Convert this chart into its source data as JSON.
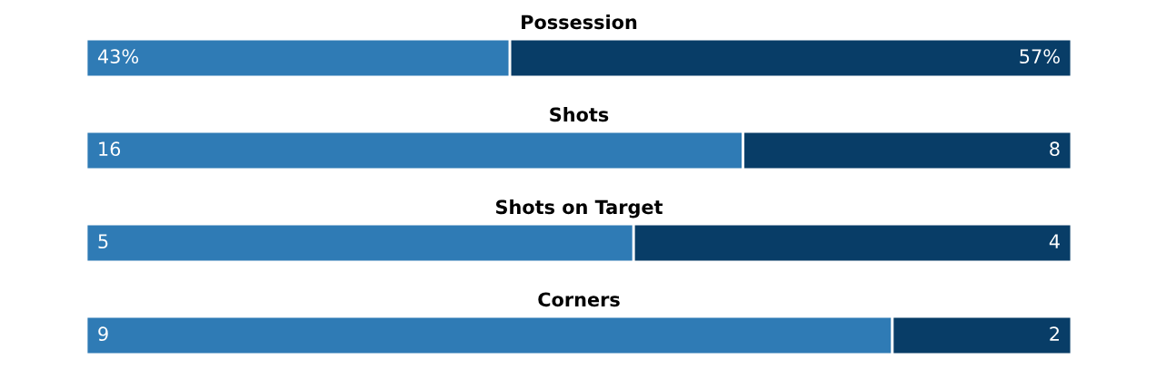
{
  "chart_data": [
    {
      "type": "bar",
      "orientation": "horizontal",
      "stacked": true,
      "title": "Possession",
      "categories": [
        null
      ],
      "tick_labels": false,
      "series": [
        {
          "color": "#2f7bb5",
          "values": [
            43
          ],
          "value_labels": [
            "43%"
          ]
        },
        {
          "color": "#083d67",
          "values": [
            57
          ],
          "value_labels": [
            "57%"
          ]
        }
      ]
    },
    {
      "type": "bar",
      "orientation": "horizontal",
      "stacked": true,
      "title": "Shots",
      "categories": [
        null
      ],
      "tick_labels": false,
      "data_labels": true,
      "series": [
        {
          "color": "#2f7bb5",
          "values": [
            16
          ]
        },
        {
          "color": "#083d67",
          "values": [
            8
          ]
        }
      ]
    },
    {
      "type": "bar",
      "orientation": "horizontal",
      "stacked": true,
      "title": "Shots on Target",
      "categories": [
        null
      ],
      "tick_labels": false,
      "data_labels": true,
      "series": [
        {
          "color": "#2f7bb5",
          "values": [
            5
          ]
        },
        {
          "color": "#083d67",
          "values": [
            4
          ]
        }
      ]
    },
    {
      "type": "bar",
      "orientation": "horizontal",
      "stacked": true,
      "title": "Corners",
      "categories": [
        null
      ],
      "tick_labels": false,
      "data_labels": true,
      "series": [
        {
          "color": "#2f7bb5",
          "values": [
            9
          ]
        },
        {
          "color": "#083d67",
          "values": [
            2
          ]
        }
      ]
    }
  ]
}
